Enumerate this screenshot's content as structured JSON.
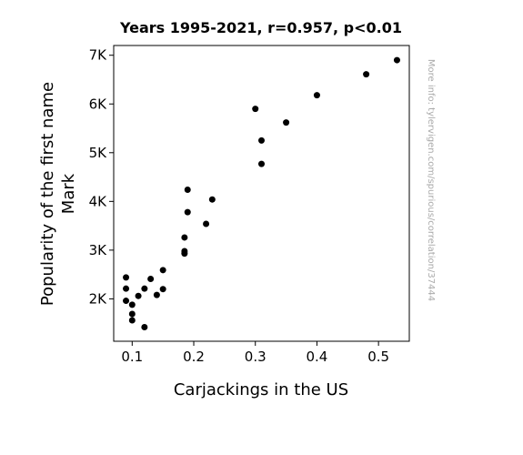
{
  "chart_data": {
    "type": "scatter",
    "title": "Years 1995-2021, r=0.957, p<0.01",
    "xlabel": "Carjackings in the US",
    "ylabel_lines": [
      "Popularity of the first name",
      "Mark"
    ],
    "xlim": [
      0.07,
      0.55
    ],
    "ylim": [
      1130,
      7200
    ],
    "x_ticks": [
      {
        "value": 0.1,
        "label": "0.1"
      },
      {
        "value": 0.2,
        "label": "0.2"
      },
      {
        "value": 0.3,
        "label": "0.3"
      },
      {
        "value": 0.4,
        "label": "0.4"
      },
      {
        "value": 0.5,
        "label": "0.5"
      }
    ],
    "y_ticks": [
      {
        "value": 2000,
        "label": "2K"
      },
      {
        "value": 3000,
        "label": "3K"
      },
      {
        "value": 4000,
        "label": "4K"
      },
      {
        "value": 5000,
        "label": "5K"
      },
      {
        "value": 6000,
        "label": "6K"
      },
      {
        "value": 7000,
        "label": "7K"
      }
    ],
    "grid": false,
    "marker_color": "#000000",
    "points": [
      {
        "x": 0.53,
        "y": 6900
      },
      {
        "x": 0.48,
        "y": 6610
      },
      {
        "x": 0.4,
        "y": 6180
      },
      {
        "x": 0.35,
        "y": 5620
      },
      {
        "x": 0.3,
        "y": 5900
      },
      {
        "x": 0.31,
        "y": 5250
      },
      {
        "x": 0.31,
        "y": 4770
      },
      {
        "x": 0.23,
        "y": 4040
      },
      {
        "x": 0.19,
        "y": 4240
      },
      {
        "x": 0.19,
        "y": 3780
      },
      {
        "x": 0.22,
        "y": 3540
      },
      {
        "x": 0.185,
        "y": 3260
      },
      {
        "x": 0.185,
        "y": 2980
      },
      {
        "x": 0.185,
        "y": 2930
      },
      {
        "x": 0.15,
        "y": 2590
      },
      {
        "x": 0.09,
        "y": 2440
      },
      {
        "x": 0.13,
        "y": 2410
      },
      {
        "x": 0.09,
        "y": 2210
      },
      {
        "x": 0.12,
        "y": 2210
      },
      {
        "x": 0.15,
        "y": 2200
      },
      {
        "x": 0.14,
        "y": 2080
      },
      {
        "x": 0.11,
        "y": 2060
      },
      {
        "x": 0.09,
        "y": 1960
      },
      {
        "x": 0.1,
        "y": 1880
      },
      {
        "x": 0.1,
        "y": 1690
      },
      {
        "x": 0.1,
        "y": 1560
      },
      {
        "x": 0.12,
        "y": 1420
      }
    ]
  },
  "watermark": "More info: tylervigen.com/spurious/correlation/37444"
}
